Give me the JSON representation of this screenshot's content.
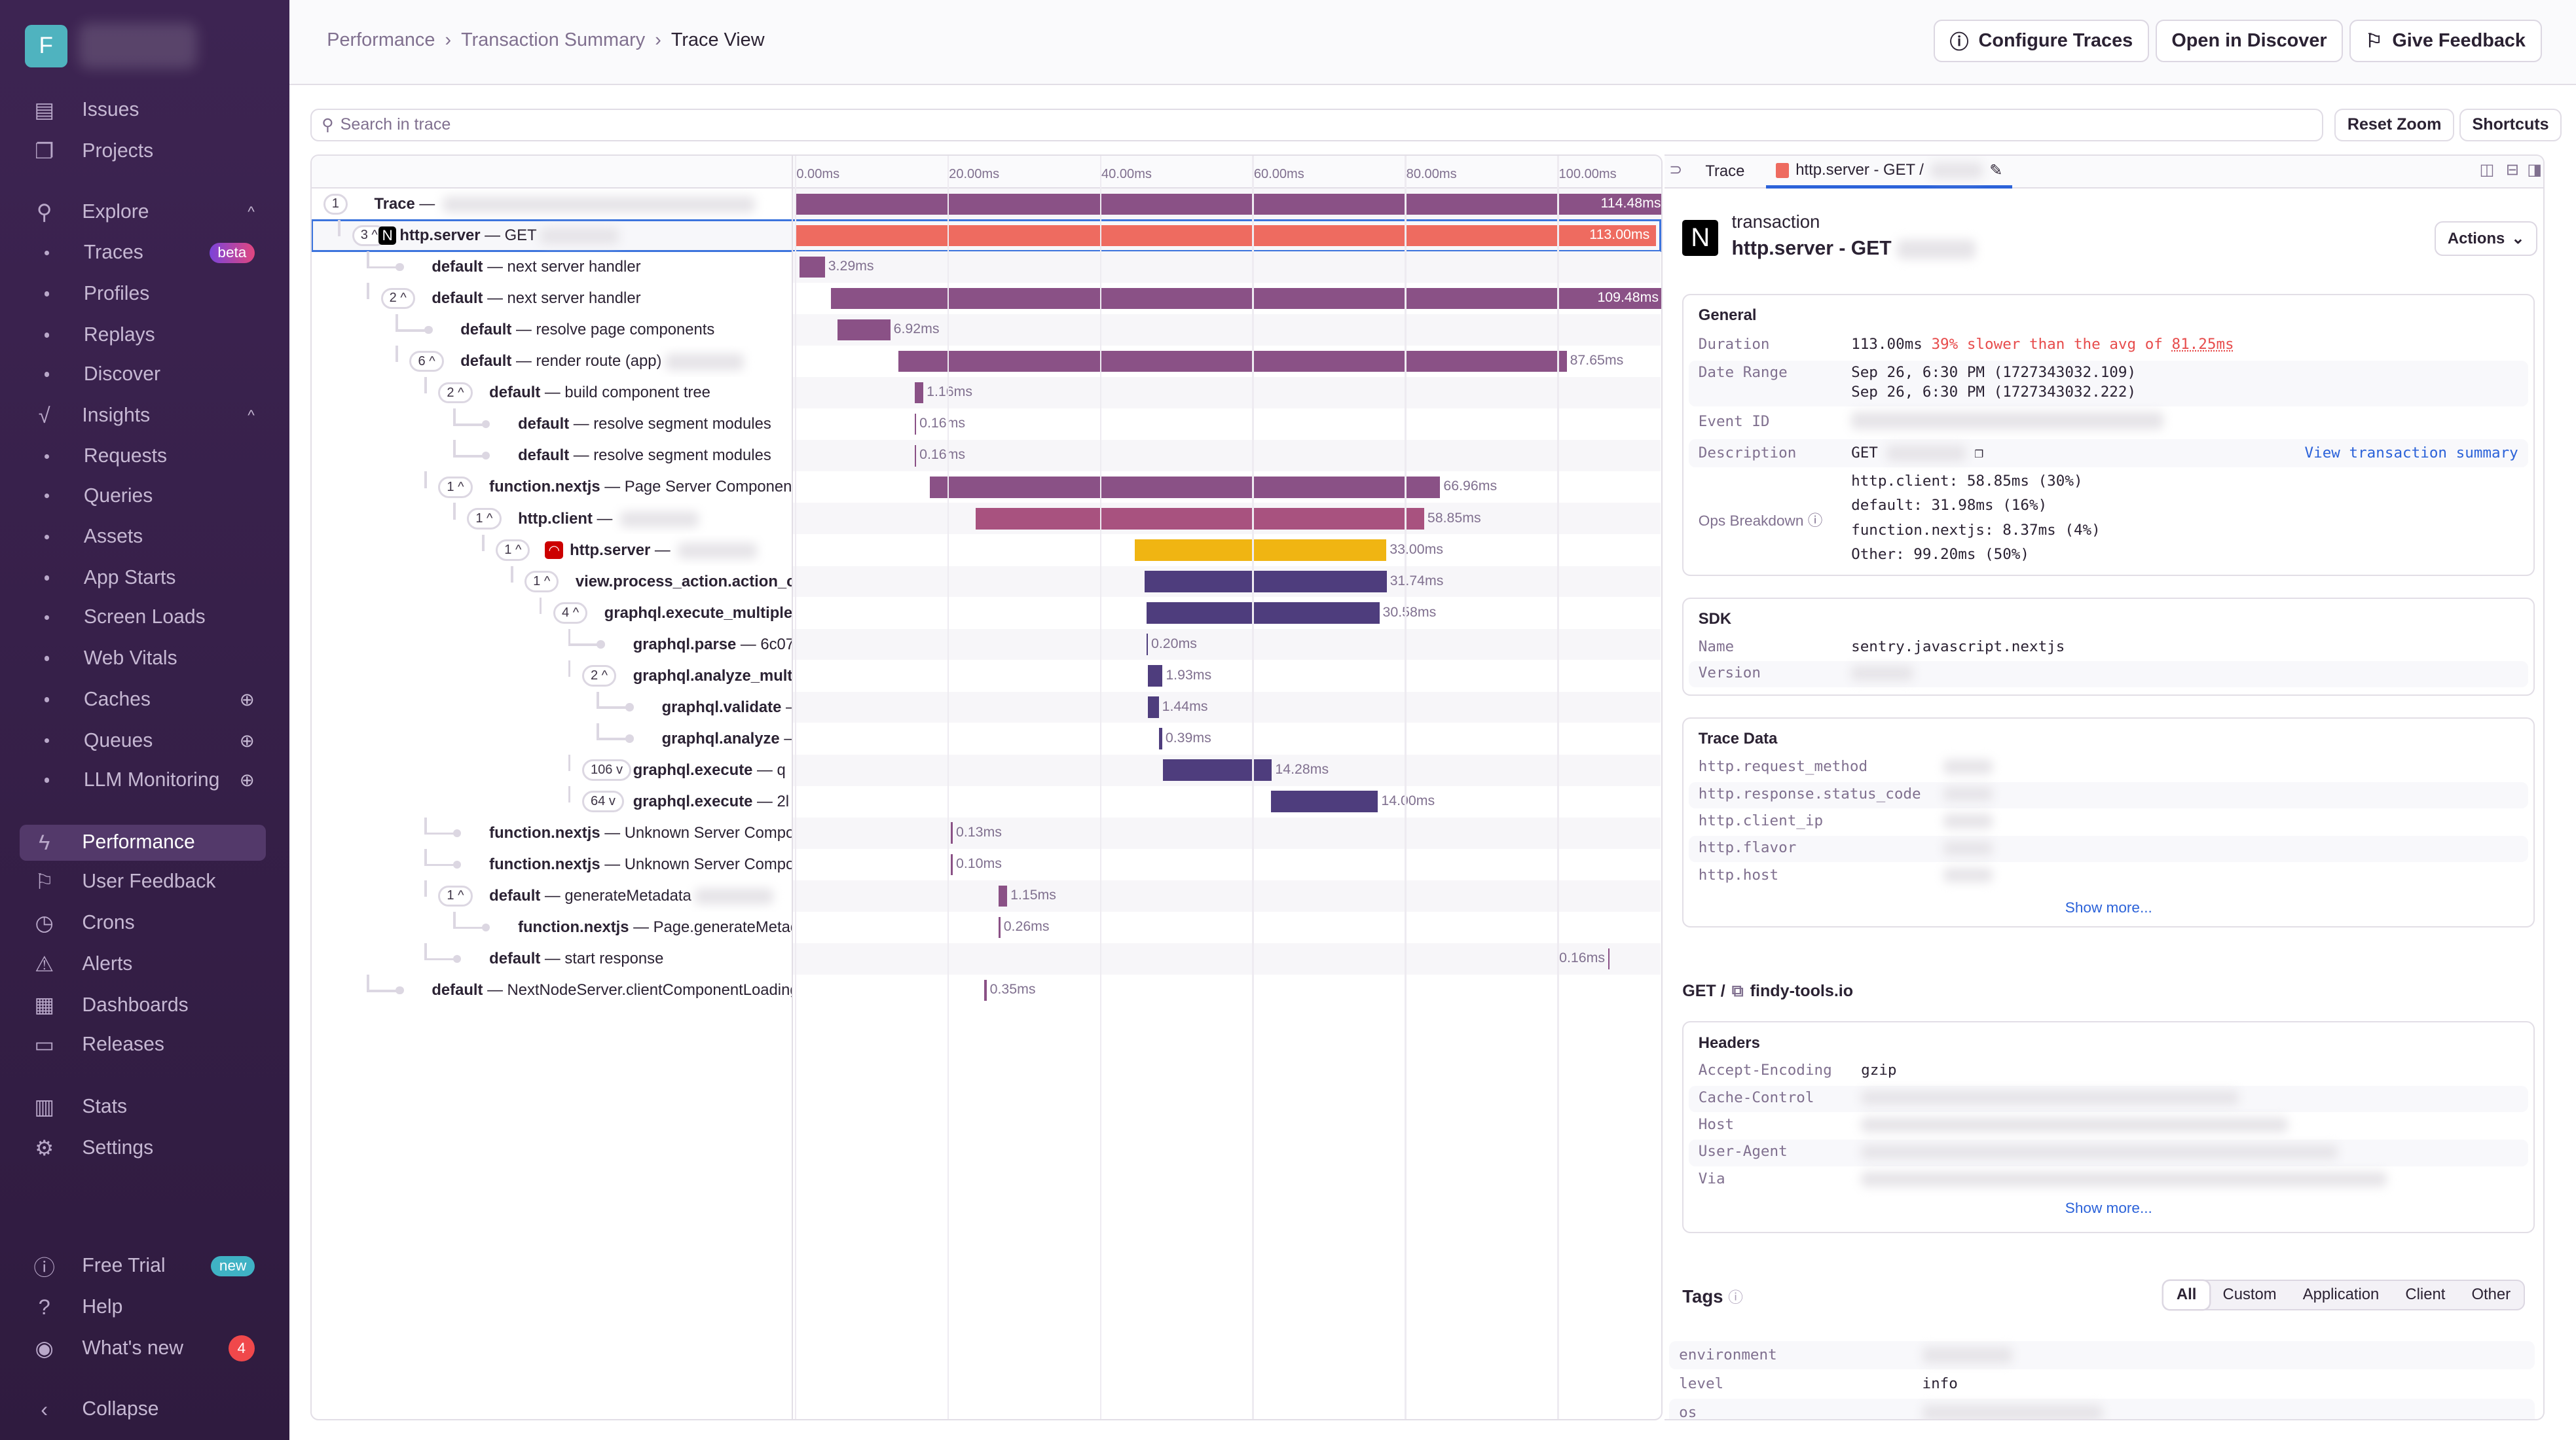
{
  "sidebar": {
    "org_initial": "F",
    "items": [
      {
        "label": "Issues",
        "icon": "issues-icon",
        "glyph": "▤",
        "type": "top"
      },
      {
        "label": "Projects",
        "icon": "projects-icon",
        "glyph": "❐",
        "type": "top"
      },
      {
        "label": "Explore",
        "icon": "search-icon",
        "glyph": "⚲",
        "type": "top",
        "chevron": "^"
      },
      {
        "label": "Traces",
        "type": "sub",
        "badge": "beta"
      },
      {
        "label": "Profiles",
        "type": "sub"
      },
      {
        "label": "Replays",
        "type": "sub"
      },
      {
        "label": "Discover",
        "type": "sub"
      },
      {
        "label": "Insights",
        "icon": "insights-icon",
        "glyph": "√",
        "type": "top",
        "chevron": "^"
      },
      {
        "label": "Requests",
        "type": "sub"
      },
      {
        "label": "Queries",
        "type": "sub"
      },
      {
        "label": "Assets",
        "type": "sub"
      },
      {
        "label": "App Starts",
        "type": "sub"
      },
      {
        "label": "Screen Loads",
        "type": "sub"
      },
      {
        "label": "Web Vitals",
        "type": "sub"
      },
      {
        "label": "Caches",
        "type": "sub",
        "plus": "⊕"
      },
      {
        "label": "Queues",
        "type": "sub",
        "plus": "⊕"
      },
      {
        "label": "LLM Monitoring",
        "type": "sub",
        "plus": "⊕"
      },
      {
        "label": "Performance",
        "icon": "lightning-icon",
        "glyph": "ϟ",
        "type": "top",
        "active": true
      },
      {
        "label": "User Feedback",
        "icon": "megaphone-icon",
        "glyph": "⚐",
        "type": "top"
      },
      {
        "label": "Crons",
        "icon": "clock-icon",
        "glyph": "◷",
        "type": "top"
      },
      {
        "label": "Alerts",
        "icon": "siren-icon",
        "glyph": "⚠",
        "type": "top"
      },
      {
        "label": "Dashboards",
        "icon": "dashboard-icon",
        "glyph": "▦",
        "type": "top"
      },
      {
        "label": "Releases",
        "icon": "releases-icon",
        "glyph": "▭",
        "type": "top"
      },
      {
        "label": "Stats",
        "icon": "stats-icon",
        "glyph": "▥",
        "type": "top"
      },
      {
        "label": "Settings",
        "icon": "gear-icon",
        "glyph": "⚙",
        "type": "top"
      },
      {
        "label": "Free Trial",
        "icon": "lightning-circle-icon",
        "glyph": "ⓘ",
        "type": "top",
        "badge": "new"
      },
      {
        "label": "Help",
        "icon": "help-icon",
        "glyph": "?",
        "type": "top"
      },
      {
        "label": "What's new",
        "icon": "broadcast-icon",
        "glyph": "◉",
        "type": "top",
        "count": "4"
      },
      {
        "label": "Collapse",
        "icon": "chevron-left-icon",
        "glyph": "‹",
        "type": "top"
      }
    ]
  },
  "header": {
    "breadcrumbs": [
      "Performance",
      "Transaction Summary",
      "Trace View"
    ],
    "separator": "›",
    "configure_traces": "Configure Traces",
    "open_in_discover": "Open in Discover",
    "give_feedback": "Give Feedback"
  },
  "toolbar": {
    "search_placeholder": "Search in trace",
    "reset_zoom": "Reset Zoom",
    "shortcuts": "Shortcuts"
  },
  "timeline": {
    "total_ms": 114.48,
    "ticks": [
      "0.00ms",
      "20.00ms",
      "40.00ms",
      "60.00ms",
      "80.00ms",
      "100.00ms"
    ],
    "tick_values": [
      0,
      20,
      40,
      60,
      80,
      100
    ],
    "colors": {
      "purple": "#8a5186",
      "coral": "#ee6b60",
      "pink": "#a8527f",
      "yellow": "#f0b512",
      "indigo": "#4e3d7d"
    },
    "rows": [
      {
        "level": 0,
        "count": "1",
        "op": "Trace",
        "desc": "",
        "blur": true,
        "start": 0,
        "dur": 114.48,
        "label": "114.48ms",
        "color": "purple",
        "lpos": "in"
      },
      {
        "level": 1,
        "count": "3 ^",
        "op": "http.server",
        "desc": "GET",
        "blur": true,
        "icon": "next",
        "start": 0,
        "dur": 113.0,
        "label": "113.00ms",
        "color": "coral",
        "lpos": "in",
        "selected": true
      },
      {
        "level": 2,
        "op": "default",
        "desc": "next server handler",
        "start": 0.65,
        "dur": 3.29,
        "label": "3.29ms",
        "color": "purple"
      },
      {
        "level": 2,
        "count": "2 ^",
        "op": "default",
        "desc": "next server handler",
        "start": 4.7,
        "dur": 109.48,
        "label": "109.48ms",
        "color": "purple",
        "lpos": "in"
      },
      {
        "level": 3,
        "op": "default",
        "desc": "resolve page components",
        "start": 5.6,
        "dur": 6.92,
        "label": "6.92ms",
        "color": "purple"
      },
      {
        "level": 3,
        "count": "6 ^",
        "op": "default",
        "desc": "render route (app)",
        "blur": true,
        "start": 13.6,
        "dur": 87.65,
        "label": "87.65ms",
        "color": "purple"
      },
      {
        "level": 4,
        "count": "2 ^",
        "op": "default",
        "desc": "build component tree",
        "start": 15.7,
        "dur": 1.16,
        "label": "1.16ms",
        "color": "purple"
      },
      {
        "level": 5,
        "op": "default",
        "desc": "resolve segment modules",
        "start": 15.7,
        "dur": 0.16,
        "label": "0.16ms",
        "color": "purple"
      },
      {
        "level": 5,
        "op": "default",
        "desc": "resolve segment modules",
        "start": 15.7,
        "dur": 0.16,
        "label": "0.16ms",
        "color": "purple"
      },
      {
        "level": 4,
        "count": "1 ^",
        "op": "function.nextjs",
        "desc": "Page Server Component",
        "start": 17.7,
        "dur": 66.96,
        "label": "66.96ms",
        "color": "purple"
      },
      {
        "level": 5,
        "count": "1 ^",
        "op": "http.client",
        "desc": "",
        "blur": true,
        "start": 23.7,
        "dur": 58.85,
        "label": "58.85ms",
        "color": "pink"
      },
      {
        "level": 6,
        "count": "1 ^",
        "op": "http.server",
        "desc": "",
        "blur": true,
        "icon": "rails",
        "start": 44.6,
        "dur": 33.0,
        "label": "33.00ms",
        "color": "yellow"
      },
      {
        "level": 7,
        "count": "1 ^",
        "op": "view.process_action.action_controller",
        "desc": "",
        "start": 45.9,
        "dur": 31.74,
        "label": "31.74ms",
        "color": "indigo"
      },
      {
        "level": 8,
        "count": "4 ^",
        "op": "graphql.execute_multiplex",
        "desc": "",
        "start": 46.1,
        "dur": 30.58,
        "label": "30.58ms",
        "color": "indigo"
      },
      {
        "level": 9,
        "op": "graphql.parse",
        "desc": "6c07",
        "start": 46.1,
        "dur": 0.2,
        "label": "0.20ms",
        "color": "indigo"
      },
      {
        "level": 9,
        "count": "2 ^",
        "op": "graphql.analyze_multiplex",
        "desc": "",
        "start": 46.3,
        "dur": 1.93,
        "label": "1.93ms",
        "color": "indigo"
      },
      {
        "level": 10,
        "op": "graphql.validate",
        "desc": "",
        "start": 46.3,
        "dur": 1.44,
        "label": "1.44ms",
        "color": "indigo"
      },
      {
        "level": 10,
        "op": "graphql.analyze",
        "desc": "",
        "start": 47.8,
        "dur": 0.39,
        "label": "0.39ms",
        "color": "indigo"
      },
      {
        "level": 9,
        "count": "106 v",
        "op": "graphql.execute",
        "desc": "q",
        "start": 48.3,
        "dur": 14.28,
        "label": "14.28ms",
        "color": "indigo"
      },
      {
        "level": 9,
        "count": "64 v",
        "op": "graphql.execute",
        "desc": "2l",
        "start": 62.5,
        "dur": 14.0,
        "label": "14.00ms",
        "color": "indigo"
      },
      {
        "level": 4,
        "op": "function.nextjs",
        "desc": "Unknown Server Component",
        "start": 20.5,
        "dur": 0.13,
        "label": "0.13ms",
        "color": "purple"
      },
      {
        "level": 4,
        "op": "function.nextjs",
        "desc": "Unknown Server Component",
        "start": 20.5,
        "dur": 0.1,
        "label": "0.10ms",
        "color": "purple"
      },
      {
        "level": 4,
        "count": "1 ^",
        "op": "default",
        "desc": "generateMetadata",
        "blur": true,
        "start": 26.7,
        "dur": 1.15,
        "label": "1.15ms",
        "color": "purple"
      },
      {
        "level": 5,
        "op": "function.nextjs",
        "desc": "Page.generateMetadata",
        "start": 26.7,
        "dur": 0.26,
        "label": "0.26ms",
        "color": "purple"
      },
      {
        "level": 4,
        "op": "default",
        "desc": "start response",
        "start": 106.7,
        "dur": 0.16,
        "label": "0.16ms",
        "color": "purple",
        "lpos": "left"
      },
      {
        "level": 2,
        "op": "default",
        "desc": "NextNodeServer.clientComponentLoading",
        "start": 24.8,
        "dur": 0.35,
        "label": "0.35ms",
        "color": "purple"
      }
    ]
  },
  "detail": {
    "tabs": {
      "trace": "Trace",
      "span": "http.server - GET /"
    },
    "kind": "transaction",
    "title": "http.server - GET",
    "actions": "Actions",
    "general": {
      "title": "General",
      "duration_label": "Duration",
      "duration": "113.00ms",
      "duration_compare": "39% slower than the avg of",
      "duration_avg": "81.25ms",
      "date_label": "Date Range",
      "date_start": "Sep 26, 6:30 PM (1727343032.109)",
      "date_end": "Sep 26, 6:30 PM (1727343032.222)",
      "event_label": "Event ID",
      "desc_label": "Description",
      "desc": "GET",
      "view_summary": "View transaction summary",
      "ops_label": "Ops Breakdown",
      "ops": [
        "http.client: 58.85ms (30%)",
        "default: 31.98ms (16%)",
        "function.nextjs: 8.37ms (4%)",
        "Other: 99.20ms (50%)"
      ]
    },
    "sdk": {
      "title": "SDK",
      "name_label": "Name",
      "name": "sentry.javascript.nextjs",
      "version_label": "Version"
    },
    "trace_data": {
      "title": "Trace Data",
      "keys": [
        "http.request_method",
        "http.response.status_code",
        "http.client_ip",
        "http.flavor",
        "http.host"
      ],
      "show_more": "Show more..."
    },
    "request": {
      "method": "GET /",
      "host": "findy-tools.io"
    },
    "headers": {
      "title": "Headers",
      "keys": [
        "Accept-Encoding",
        "Cache-Control",
        "Host",
        "User-Agent",
        "Via"
      ],
      "first_value": "gzip",
      "show_more": "Show more..."
    },
    "tags": {
      "title": "Tags",
      "filters": [
        "All",
        "Custom",
        "Application",
        "Client",
        "Other"
      ],
      "rows": [
        {
          "k": "environment",
          "v": ""
        },
        {
          "k": "level",
          "v": "info"
        },
        {
          "k": "os",
          "v": ""
        }
      ]
    }
  }
}
